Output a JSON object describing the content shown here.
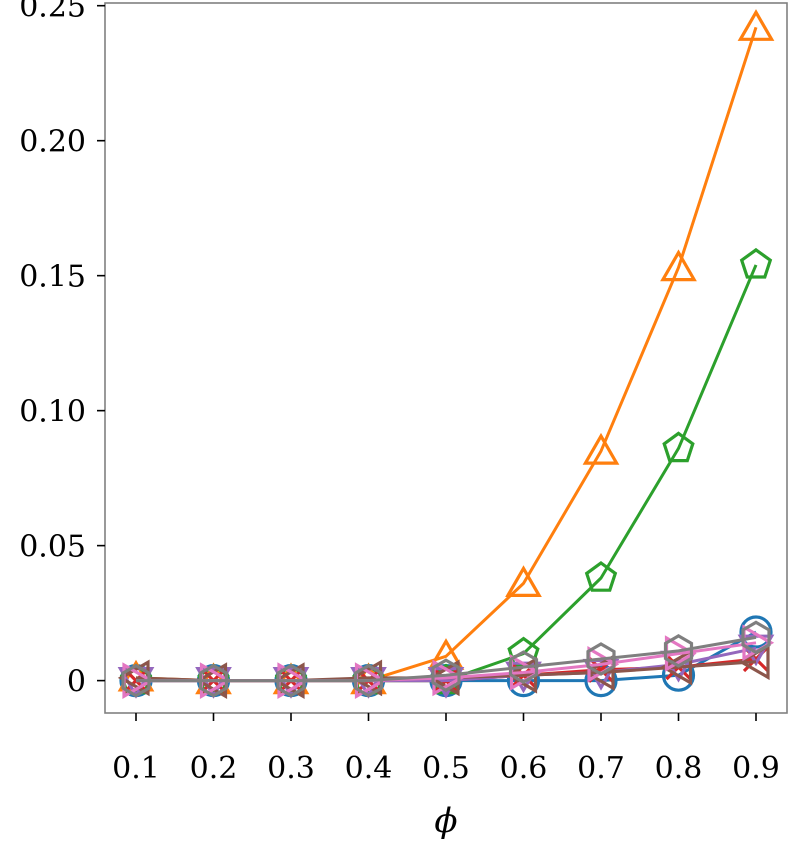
{
  "chart_data": {
    "type": "line",
    "xlabel": "ϕ",
    "ylabel": "",
    "x": [
      0.1,
      0.2,
      0.3,
      0.4,
      0.5,
      0.6,
      0.7,
      0.8,
      0.9
    ],
    "x_tick_labels": [
      "0.1",
      "0.2",
      "0.3",
      "0.4",
      "0.5",
      "0.6",
      "0.7",
      "0.8",
      "0.9"
    ],
    "y_ticks": [
      0,
      0.05,
      0.1,
      0.15,
      0.2,
      0.25
    ],
    "y_tick_labels": [
      "0",
      "0.05",
      "0.10",
      "0.15",
      "0.20",
      "0.25"
    ],
    "xlim": [
      0.06,
      0.94
    ],
    "ylim": [
      -0.012,
      0.251
    ],
    "grid": false,
    "legend": "none",
    "series": [
      {
        "color": "#1f77b4",
        "marker": "circle",
        "values": [
          0,
          0,
          0,
          0,
          0,
          0,
          0,
          0.002,
          0.018
        ]
      },
      {
        "color": "#ff7f0e",
        "marker": "triangle-up",
        "values": [
          0.001,
          0,
          0,
          0,
          0.009,
          0.036,
          0.085,
          0.153,
          0.242
        ]
      },
      {
        "color": "#2ca02c",
        "marker": "pentagon",
        "values": [
          0,
          0,
          0,
          0,
          0,
          0.01,
          0.038,
          0.086,
          0.154
        ]
      },
      {
        "color": "#d62728",
        "marker": "x",
        "values": [
          0,
          0,
          0,
          0,
          0,
          0.002,
          0.004,
          0.005,
          0.008
        ]
      },
      {
        "color": "#9467bd",
        "marker": "triangle-down",
        "values": [
          0,
          0,
          0,
          0,
          0,
          0.002,
          0.003,
          0.006,
          0.012
        ]
      },
      {
        "color": "#8c564b",
        "marker": "triangle-left",
        "values": [
          0.001,
          0,
          0,
          0.001,
          0.001,
          0.002,
          0.003,
          0.005,
          0.007
        ]
      },
      {
        "color": "#e377c2",
        "marker": "triangle-right",
        "values": [
          0,
          0,
          0,
          0,
          0.001,
          0.003,
          0.006,
          0.01,
          0.014
        ]
      },
      {
        "color": "#7f7f7f",
        "marker": "hexagon",
        "values": [
          0,
          0,
          0,
          0,
          0.002,
          0.005,
          0.008,
          0.011,
          0.016
        ]
      }
    ]
  }
}
